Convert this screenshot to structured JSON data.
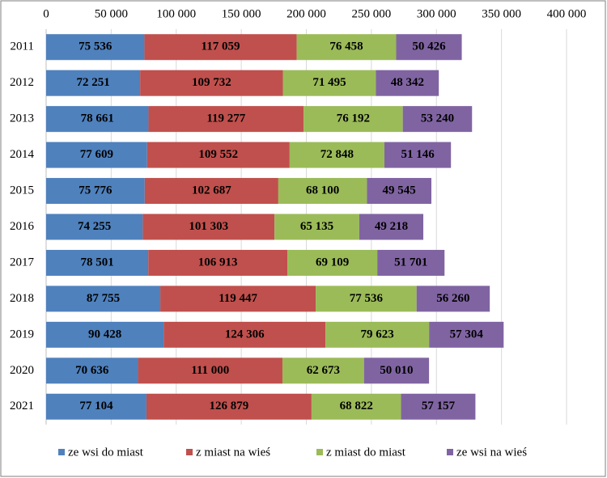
{
  "chart_data": {
    "type": "stacked-bar-horizontal",
    "categories": [
      "2011",
      "2012",
      "2013",
      "2014",
      "2015",
      "2016",
      "2017",
      "2018",
      "2019",
      "2020",
      "2021"
    ],
    "series": [
      {
        "name": "ze wsi do miast",
        "color": "#4f81bd",
        "values": [
          75536,
          72251,
          78661,
          77609,
          75776,
          74255,
          78501,
          87755,
          90428,
          70636,
          77104
        ],
        "value_labels": [
          "75 536",
          "72 251",
          "78 661",
          "77 609",
          "75 776",
          "74 255",
          "78 501",
          "87 755",
          "90 428",
          "70 636",
          "77 104"
        ]
      },
      {
        "name": "z miast na wieś",
        "color": "#c0504d",
        "values": [
          117059,
          109732,
          119277,
          109552,
          102687,
          101303,
          106913,
          119447,
          124306,
          111000,
          126879
        ],
        "value_labels": [
          "117 059",
          "109 732",
          "119 277",
          "109 552",
          "102 687",
          "101 303",
          "106 913",
          "119 447",
          "124 306",
          "111 000",
          "126 879"
        ]
      },
      {
        "name": "z miast do miast",
        "color": "#9bbb59",
        "values": [
          76458,
          71495,
          76192,
          72848,
          68100,
          65135,
          69109,
          77536,
          79623,
          62673,
          68822
        ],
        "value_labels": [
          "76 458",
          "71 495",
          "76 192",
          "72 848",
          "68 100",
          "65 135",
          "69 109",
          "77 536",
          "79 623",
          "62 673",
          "68 822"
        ]
      },
      {
        "name": "ze wsi na wieś",
        "color": "#8064a2",
        "values": [
          50426,
          48342,
          53240,
          51146,
          49545,
          49218,
          51701,
          56260,
          57304,
          50010,
          57157
        ],
        "value_labels": [
          "50 426",
          "48 342",
          "53 240",
          "51 146",
          "49 545",
          "49 218",
          "51 701",
          "56 260",
          "57 304",
          "50 010",
          "57 157"
        ]
      }
    ],
    "xlim": [
      0,
      400000
    ],
    "xticks": [
      0,
      {
        "value": 50000,
        "label": "50 000"
      },
      {
        "value": 100000,
        "label": "100 000"
      },
      {
        "value": 150000,
        "label": "150 000"
      },
      {
        "value": 200000,
        "label": "200 000"
      },
      {
        "value": 250000,
        "label": "250 000"
      },
      {
        "value": 300000,
        "label": "300 000"
      },
      {
        "value": 350000,
        "label": "350 000"
      },
      {
        "value": 400000,
        "label": "400 000"
      }
    ],
    "grid": true,
    "legend": "bottom"
  }
}
